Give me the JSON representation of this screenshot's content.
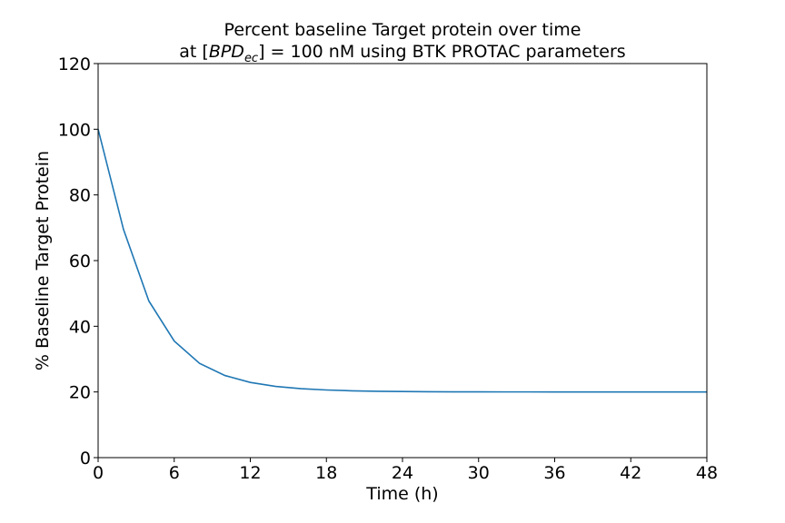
{
  "chart_data": {
    "type": "line",
    "title_line1": "Percent baseline Target protein over time",
    "title_line2_prefix": "at [",
    "title_line2_var": "BPD",
    "title_line2_sub": "ec",
    "title_line2_suffix": "] = 100 nM using BTK PROTAC parameters",
    "xlabel": "Time (h)",
    "ylabel": "% Baseline Target Protein",
    "xlim": [
      0,
      48
    ],
    "ylim": [
      0,
      120
    ],
    "xticks": [
      0,
      6,
      12,
      18,
      24,
      30,
      36,
      42,
      48
    ],
    "yticks": [
      0,
      20,
      40,
      60,
      80,
      100,
      120
    ],
    "grid": false,
    "line_color": "#1f77b4",
    "series": [
      {
        "x": [
          0,
          2,
          4,
          6,
          8,
          10,
          12,
          14,
          16,
          18,
          20,
          22,
          24,
          26,
          28,
          30,
          32,
          34,
          36,
          38,
          40,
          42,
          44,
          46,
          48
        ],
        "y": [
          100,
          69.5,
          47.7,
          35.5,
          28.7,
          25.0,
          22.9,
          21.7,
          21.0,
          20.6,
          20.35,
          20.2,
          20.12,
          20.07,
          20.04,
          20.02,
          20.01,
          20.01,
          20.0,
          20.0,
          20.0,
          20.0,
          20.0,
          20.0,
          20.0
        ]
      }
    ]
  }
}
